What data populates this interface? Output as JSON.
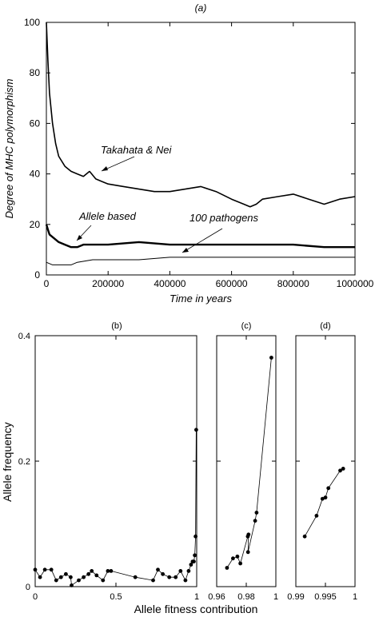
{
  "colors": {
    "ink": "#000000",
    "background": "#ffffff"
  },
  "chart_data": [
    {
      "type": "line",
      "title": "(a)",
      "xlabel": "Time in years",
      "ylabel": "Degree of MHC polymorphism",
      "xlim": [
        0,
        1000000
      ],
      "ylim": [
        0,
        100
      ],
      "xticks": [
        0,
        200000,
        400000,
        600000,
        800000,
        1000000
      ],
      "yticks": [
        0,
        20,
        40,
        60,
        80,
        100
      ],
      "grid": false,
      "series": [
        {
          "name": "Takahata & Nei",
          "x": [
            0,
            5000,
            10000,
            20000,
            30000,
            40000,
            60000,
            80000,
            100000,
            120000,
            140000,
            160000,
            180000,
            200000,
            250000,
            300000,
            350000,
            400000,
            450000,
            500000,
            550000,
            600000,
            640000,
            660000,
            680000,
            700000,
            750000,
            800000,
            850000,
            900000,
            950000,
            1000000
          ],
          "y": [
            100,
            85,
            72,
            60,
            52,
            47,
            43,
            41,
            40,
            39,
            41,
            38,
            37,
            36,
            35,
            34,
            33,
            33,
            34,
            35,
            33,
            30,
            28,
            27,
            28,
            30,
            31,
            32,
            30,
            28,
            30,
            31
          ]
        },
        {
          "name": "Allele based",
          "x": [
            0,
            5000,
            10000,
            20000,
            40000,
            60000,
            80000,
            100000,
            120000,
            150000,
            200000,
            300000,
            400000,
            500000,
            600000,
            700000,
            800000,
            900000,
            1000000
          ],
          "y": [
            20,
            18,
            16,
            15,
            13,
            12,
            11,
            11,
            12,
            12,
            12,
            13,
            12,
            12,
            12,
            12,
            12,
            11,
            11
          ]
        },
        {
          "name": "100 pathogens",
          "x": [
            0,
            20000,
            80000,
            100000,
            150000,
            200000,
            300000,
            400000,
            500000,
            600000,
            700000,
            800000,
            900000,
            1000000
          ],
          "y": [
            5,
            4,
            4,
            5,
            6,
            6,
            6,
            7,
            7,
            7,
            7,
            7,
            7,
            7
          ]
        }
      ],
      "annotations": [
        "Takahata & Nei",
        "Allele based",
        "100 pathogens"
      ]
    },
    {
      "type": "line",
      "title": "(b)",
      "xlim": [
        0,
        1
      ],
      "ylim": [
        0,
        0.4
      ],
      "xticks": [
        "0",
        "0.5",
        "1"
      ],
      "yticks": [
        "0",
        "0.2",
        "0.4"
      ],
      "points": [
        [
          0.0,
          0.027
        ],
        [
          0.03,
          0.015
        ],
        [
          0.06,
          0.027
        ],
        [
          0.1,
          0.027
        ],
        [
          0.13,
          0.01
        ],
        [
          0.16,
          0.015
        ],
        [
          0.19,
          0.02
        ],
        [
          0.22,
          0.015
        ],
        [
          0.225,
          0.002
        ],
        [
          0.27,
          0.01
        ],
        [
          0.3,
          0.015
        ],
        [
          0.33,
          0.02
        ],
        [
          0.35,
          0.025
        ],
        [
          0.38,
          0.018
        ],
        [
          0.42,
          0.01
        ],
        [
          0.45,
          0.025
        ],
        [
          0.47,
          0.025
        ],
        [
          0.62,
          0.015
        ],
        [
          0.73,
          0.01
        ],
        [
          0.76,
          0.027
        ],
        [
          0.79,
          0.02
        ],
        [
          0.83,
          0.015
        ],
        [
          0.87,
          0.015
        ],
        [
          0.9,
          0.025
        ],
        [
          0.93,
          0.01
        ],
        [
          0.95,
          0.025
        ],
        [
          0.965,
          0.035
        ],
        [
          0.975,
          0.04
        ],
        [
          0.982,
          0.04
        ],
        [
          0.988,
          0.05
        ],
        [
          0.993,
          0.08
        ],
        [
          0.997,
          0.25
        ]
      ]
    },
    {
      "type": "line",
      "title": "(c)",
      "xlim": [
        0.96,
        1
      ],
      "ylim": [
        0,
        0.4
      ],
      "xticks": [
        "0.96",
        "0.98",
        "1"
      ],
      "points": [
        [
          0.967,
          0.03
        ],
        [
          0.971,
          0.045
        ],
        [
          0.974,
          0.048
        ],
        [
          0.976,
          0.037
        ],
        [
          0.981,
          0.08
        ],
        [
          0.9815,
          0.083
        ],
        [
          0.9812,
          0.055
        ],
        [
          0.986,
          0.105
        ],
        [
          0.987,
          0.118
        ],
        [
          0.997,
          0.365
        ]
      ]
    },
    {
      "type": "line",
      "title": "(d)",
      "xlim": [
        0.99,
        1
      ],
      "ylim": [
        0,
        0.4
      ],
      "xticks": [
        "0.99",
        "0.995",
        "1"
      ],
      "points": [
        [
          0.9915,
          0.08
        ],
        [
          0.9935,
          0.113
        ],
        [
          0.9945,
          0.14
        ],
        [
          0.995,
          0.142
        ],
        [
          0.9955,
          0.157
        ],
        [
          0.9975,
          0.185
        ],
        [
          0.998,
          0.188
        ]
      ]
    }
  ],
  "bottom_axes": {
    "ylabel": "Allele frequency",
    "xlabel": "Allele fitness contribution"
  }
}
